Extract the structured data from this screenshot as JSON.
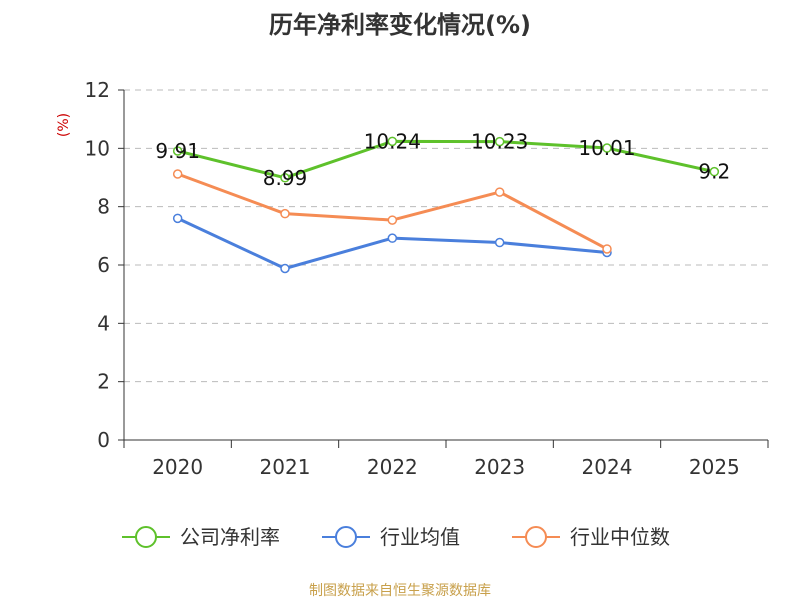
{
  "chart_data": {
    "type": "line",
    "title": "历年净利率变化情况(%)",
    "ylabel": "(%)",
    "xlabel": "",
    "categories": [
      "2020",
      "2021",
      "2022",
      "2023",
      "2024",
      "2025"
    ],
    "ylim": [
      0,
      12
    ],
    "yticks": [
      "0",
      "2",
      "4",
      "6",
      "8",
      "10",
      "12"
    ],
    "grid": true,
    "legend_position": "bottom",
    "series": [
      {
        "name": "公司净利率",
        "color": "#5ec12b",
        "values": [
          9.91,
          8.99,
          10.24,
          10.23,
          10.01,
          9.2
        ],
        "labels": [
          "9.91",
          "8.99",
          "10.24",
          "10.23",
          "10.01",
          "9.2"
        ],
        "show_labels": true
      },
      {
        "name": "行业均值",
        "color": "#4a7fdc",
        "values": [
          7.6,
          5.88,
          6.92,
          6.77,
          6.43,
          null
        ],
        "show_labels": false
      },
      {
        "name": "行业中位数",
        "color": "#f58c54",
        "values": [
          9.12,
          7.76,
          7.54,
          8.5,
          6.55,
          null
        ],
        "show_labels": false
      }
    ],
    "source": "制图数据来自恒生聚源数据库"
  },
  "colors": {
    "unit_label": "#cc0000",
    "source": "#c8a04b",
    "axis": "#333333",
    "grid": "#bbbbbb"
  }
}
